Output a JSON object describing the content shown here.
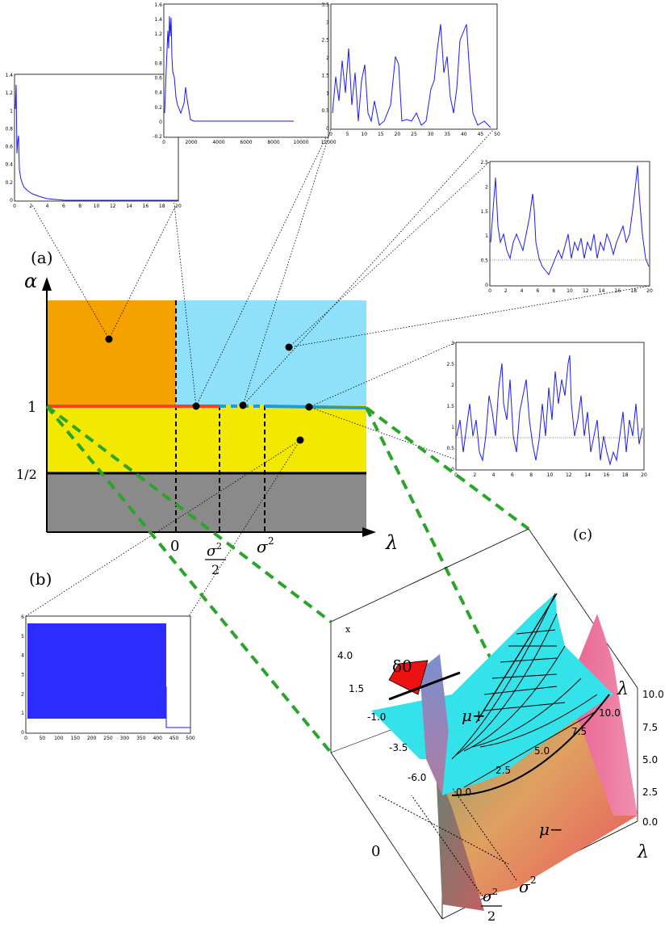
{
  "panel_labels": {
    "a": "(a)",
    "b": "(b)",
    "c": "(c)"
  },
  "phase_diagram": {
    "y_axis_label": "α",
    "x_axis_label": "λ",
    "y_ticks": {
      "one": "1",
      "half": "1/2"
    },
    "x_ticks": {
      "zero": "0",
      "sigma2_num": "σ",
      "sigma2_den": "2",
      "sigma2": "σ",
      "sup2": "2"
    },
    "colors": {
      "orange": "#f5a200",
      "blue": "#8fe0fa",
      "yellow": "#f2e800",
      "gray": "#8a8a8a",
      "red_line": "#ff3d1f",
      "blue_line": "#1f9ad8"
    }
  },
  "surface_plot": {
    "x_axis": "x",
    "lambda_label": "λ",
    "delta_label": "δ0",
    "mu_plus": "μ+",
    "mu_minus": "μ−",
    "left_ticks": [
      "4.0",
      "1.5",
      "-1.0",
      "-3.5",
      "-6.0"
    ],
    "depth_ticks": [
      "0.0",
      "2.5",
      "5.0",
      "7.5",
      "10.0"
    ],
    "right_ticks": [
      "10.0",
      "7.5",
      "5.0",
      "2.5",
      "0.0"
    ],
    "bottom_labels": {
      "zero": "0",
      "sigma2": "σ",
      "sup2": "2",
      "sigma2_half_num": "σ",
      "sigma2_half_den": "2"
    }
  },
  "insets": {
    "inset1": {
      "y_ticks": [
        "1.4",
        "1.2",
        "1",
        "0.8",
        "0.6",
        "0.4",
        "0.2",
        "0"
      ],
      "x_ticks": [
        "0",
        "2",
        "4",
        "6",
        "8",
        "10",
        "12",
        "14",
        "16",
        "18",
        "20"
      ]
    },
    "inset2": {
      "y_ticks": [
        "1.6",
        "1.4",
        "1.2",
        "1",
        "0.8",
        "0.6",
        "0.4",
        "0.2",
        "0",
        "-0.2"
      ],
      "x_ticks": [
        "0",
        "2000",
        "4000",
        "6000",
        "8000",
        "10000",
        "12000"
      ]
    },
    "inset3": {
      "y_ticks": [
        "3.5",
        "3",
        "2.5",
        "2",
        "1.5",
        "1",
        "0.5",
        "0"
      ],
      "x_ticks": [
        "0",
        "5",
        "10",
        "15",
        "20",
        "25",
        "30",
        "35",
        "40",
        "45",
        "50"
      ]
    },
    "inset4": {
      "y_ticks": [
        "2.5",
        "2",
        "1.5",
        "1",
        "0.5",
        "0"
      ],
      "x_ticks": [
        "0",
        "2",
        "4",
        "6",
        "8",
        "10",
        "12",
        "14",
        "16",
        "18",
        "20"
      ]
    },
    "inset5": {
      "y_ticks": [
        "3",
        "2.5",
        "2",
        "1.5",
        "1",
        "0.5",
        "0"
      ],
      "x_ticks": [
        "0",
        "2",
        "4",
        "6",
        "8",
        "10",
        "12",
        "14",
        "16",
        "18",
        "20"
      ]
    },
    "inset6": {
      "y_ticks": [
        "6",
        "5",
        "4",
        "3",
        "2",
        "1",
        "0"
      ],
      "x_ticks": [
        "0",
        "50",
        "100",
        "150",
        "200",
        "250",
        "300",
        "350",
        "400",
        "450",
        "500"
      ]
    }
  }
}
